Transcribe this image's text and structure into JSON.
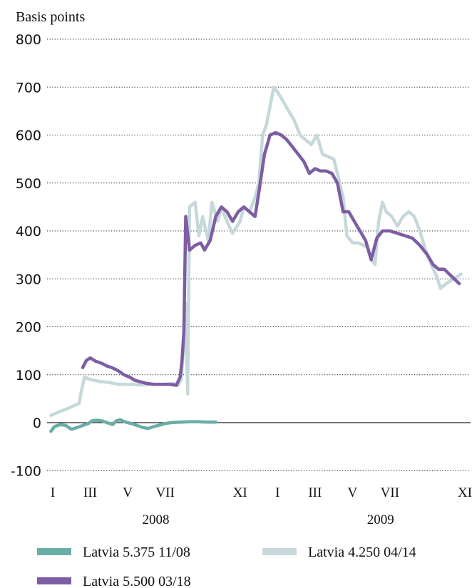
{
  "chart_data": {
    "type": "line",
    "ylabel": "Basis points",
    "ylim": [
      -100,
      800
    ],
    "yticks": [
      800,
      700,
      600,
      500,
      400,
      300,
      200,
      100,
      0,
      -100
    ],
    "grid": "dotted horizontal",
    "x_month_labels": [
      "I",
      "III",
      "V",
      "VII",
      "XI",
      "I",
      "III",
      "V",
      "VII",
      "XI"
    ],
    "x_month_positions": [
      1,
      3,
      5,
      7,
      11,
      13,
      15,
      17,
      19,
      23
    ],
    "x_years": [
      {
        "label": "2008",
        "center": 6.5
      },
      {
        "label": "2009",
        "center": 18.5
      }
    ],
    "legend_placement": "bottom",
    "series": [
      {
        "name": "Latvia 5.375 11/08",
        "color": "#6aaea6",
        "points": [
          [
            0.9,
            -18
          ],
          [
            1.1,
            -8
          ],
          [
            1.4,
            -4
          ],
          [
            1.7,
            -6
          ],
          [
            2.0,
            -14
          ],
          [
            2.3,
            -10
          ],
          [
            2.6,
            -6
          ],
          [
            2.9,
            -2
          ],
          [
            3.1,
            4
          ],
          [
            3.3,
            5
          ],
          [
            3.6,
            4
          ],
          [
            3.9,
            0
          ],
          [
            4.2,
            -4
          ],
          [
            4.4,
            4
          ],
          [
            4.6,
            6
          ],
          [
            4.9,
            1
          ],
          [
            5.2,
            -2
          ],
          [
            5.5,
            -6
          ],
          [
            5.8,
            -10
          ],
          [
            6.1,
            -12
          ],
          [
            6.4,
            -8
          ],
          [
            6.7,
            -5
          ],
          [
            7.0,
            -2
          ],
          [
            7.3,
            0
          ],
          [
            7.8,
            1
          ],
          [
            8.3,
            2
          ],
          [
            8.8,
            2
          ],
          [
            9.2,
            1
          ],
          [
            9.7,
            1
          ]
        ]
      },
      {
        "name": "Latvia 4.250 04/14",
        "color": "#c6d8da",
        "points": [
          [
            0.9,
            15
          ],
          [
            1.3,
            22
          ],
          [
            1.7,
            28
          ],
          [
            2.1,
            35
          ],
          [
            2.4,
            40
          ],
          [
            2.55,
            70
          ],
          [
            2.7,
            95
          ],
          [
            3.0,
            90
          ],
          [
            3.5,
            86
          ],
          [
            4.0,
            84
          ],
          [
            4.5,
            80
          ],
          [
            5.0,
            80
          ],
          [
            5.5,
            79
          ],
          [
            6.0,
            79
          ],
          [
            6.5,
            80
          ],
          [
            7.0,
            80
          ],
          [
            7.4,
            82
          ],
          [
            7.7,
            78
          ],
          [
            7.85,
            90
          ],
          [
            8.0,
            160
          ],
          [
            8.1,
            250
          ],
          [
            8.2,
            60
          ],
          [
            8.3,
            450
          ],
          [
            8.6,
            460
          ],
          [
            8.8,
            390
          ],
          [
            9.0,
            430
          ],
          [
            9.3,
            380
          ],
          [
            9.5,
            460
          ],
          [
            9.8,
            420
          ],
          [
            10.0,
            450
          ],
          [
            10.3,
            420
          ],
          [
            10.6,
            395
          ],
          [
            11.0,
            420
          ],
          [
            11.2,
            450
          ],
          [
            11.5,
            440
          ],
          [
            11.8,
            470
          ],
          [
            12.0,
            500
          ],
          [
            12.2,
            600
          ],
          [
            12.4,
            620
          ],
          [
            12.6,
            660
          ],
          [
            12.8,
            700
          ],
          [
            13.0,
            690
          ],
          [
            13.3,
            670
          ],
          [
            13.6,
            650
          ],
          [
            13.9,
            630
          ],
          [
            14.2,
            600
          ],
          [
            14.5,
            590
          ],
          [
            14.8,
            580
          ],
          [
            15.1,
            600
          ],
          [
            15.4,
            560
          ],
          [
            15.7,
            555
          ],
          [
            16.0,
            550
          ],
          [
            16.2,
            520
          ],
          [
            16.5,
            470
          ],
          [
            16.7,
            390
          ],
          [
            17.0,
            375
          ],
          [
            17.3,
            375
          ],
          [
            17.6,
            370
          ],
          [
            17.8,
            365
          ],
          [
            18.0,
            340
          ],
          [
            18.2,
            330
          ],
          [
            18.4,
            420
          ],
          [
            18.6,
            460
          ],
          [
            18.8,
            440
          ],
          [
            19.1,
            430
          ],
          [
            19.4,
            410
          ],
          [
            19.7,
            430
          ],
          [
            20.0,
            440
          ],
          [
            20.3,
            430
          ],
          [
            20.6,
            400
          ],
          [
            20.9,
            360
          ],
          [
            21.2,
            330
          ],
          [
            21.5,
            305
          ],
          [
            21.7,
            280
          ],
          [
            22.0,
            290
          ],
          [
            22.4,
            300
          ],
          [
            22.8,
            310
          ]
        ]
      },
      {
        "name": "Latvia 5.500 03/18",
        "color": "#7d5da3",
        "points": [
          [
            2.6,
            115
          ],
          [
            2.8,
            130
          ],
          [
            3.0,
            135
          ],
          [
            3.3,
            128
          ],
          [
            3.6,
            124
          ],
          [
            3.9,
            118
          ],
          [
            4.2,
            114
          ],
          [
            4.5,
            108
          ],
          [
            4.8,
            100
          ],
          [
            5.1,
            95
          ],
          [
            5.4,
            88
          ],
          [
            5.7,
            85
          ],
          [
            6.0,
            82
          ],
          [
            6.4,
            80
          ],
          [
            6.8,
            80
          ],
          [
            7.2,
            80
          ],
          [
            7.6,
            78
          ],
          [
            7.8,
            95
          ],
          [
            7.9,
            130
          ],
          [
            8.0,
            190
          ],
          [
            8.1,
            430
          ],
          [
            8.3,
            360
          ],
          [
            8.6,
            370
          ],
          [
            8.9,
            375
          ],
          [
            9.1,
            360
          ],
          [
            9.4,
            380
          ],
          [
            9.7,
            430
          ],
          [
            10.0,
            450
          ],
          [
            10.3,
            440
          ],
          [
            10.6,
            420
          ],
          [
            10.9,
            440
          ],
          [
            11.2,
            450
          ],
          [
            11.5,
            440
          ],
          [
            11.8,
            430
          ],
          [
            12.0,
            480
          ],
          [
            12.3,
            560
          ],
          [
            12.6,
            600
          ],
          [
            12.9,
            605
          ],
          [
            13.2,
            600
          ],
          [
            13.5,
            590
          ],
          [
            13.8,
            575
          ],
          [
            14.1,
            560
          ],
          [
            14.4,
            545
          ],
          [
            14.7,
            520
          ],
          [
            15.0,
            530
          ],
          [
            15.3,
            525
          ],
          [
            15.6,
            525
          ],
          [
            15.9,
            520
          ],
          [
            16.2,
            500
          ],
          [
            16.5,
            440
          ],
          [
            16.8,
            440
          ],
          [
            17.1,
            420
          ],
          [
            17.4,
            400
          ],
          [
            17.7,
            380
          ],
          [
            18.0,
            340
          ],
          [
            18.3,
            385
          ],
          [
            18.6,
            400
          ],
          [
            19.0,
            400
          ],
          [
            19.4,
            395
          ],
          [
            19.8,
            390
          ],
          [
            20.2,
            385
          ],
          [
            20.6,
            370
          ],
          [
            21.0,
            350
          ],
          [
            21.3,
            330
          ],
          [
            21.6,
            320
          ],
          [
            21.9,
            320
          ],
          [
            22.3,
            305
          ],
          [
            22.7,
            290
          ]
        ]
      }
    ]
  }
}
